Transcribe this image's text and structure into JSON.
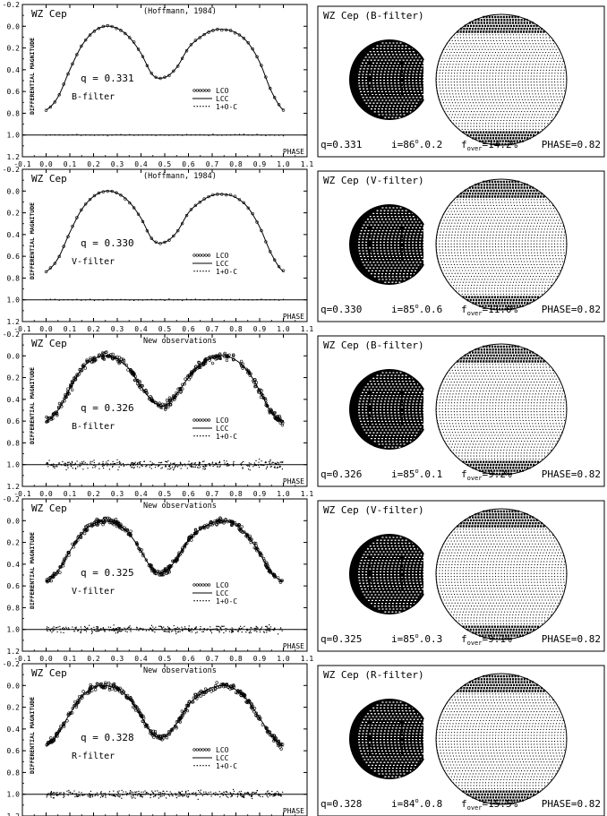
{
  "panels": [
    {
      "object": "WZ Cep",
      "source": "(Hoffmann, 1984)",
      "q_label": "q = 0.331",
      "filter_label": "B-filter",
      "model_title": "WZ Cep (B-filter)",
      "params": {
        "q": "q=0.331",
        "i_prefix": "i=86",
        "i_suffix": "0.2",
        "f_value": "=14.2%",
        "phase": "PHASE=0.82"
      },
      "scatter": 0.006
    },
    {
      "object": "WZ Cep",
      "source": "(Hoffmann, 1984)",
      "q_label": "q = 0.330",
      "filter_label": "V-filter",
      "model_title": "WZ Cep (V-filter)",
      "params": {
        "q": "q=0.330",
        "i_prefix": "i=85",
        "i_suffix": "0.6",
        "f_value": "=11.0%",
        "phase": "PHASE=0.82"
      },
      "scatter": 0.006
    },
    {
      "object": "WZ Cep",
      "source": "New observations",
      "q_label": "q = 0.326",
      "filter_label": "B-filter",
      "model_title": "WZ Cep (B-filter)",
      "params": {
        "q": "q=0.326",
        "i_prefix": "i=85",
        "i_suffix": "0.1",
        "f_value": "=9.2%",
        "phase": "PHASE=0.82"
      },
      "scatter": 0.035
    },
    {
      "object": "WZ Cep",
      "source": "New observations",
      "q_label": "q = 0.325",
      "filter_label": "V-filter",
      "model_title": "WZ Cep (V-filter)",
      "params": {
        "q": "q=0.325",
        "i_prefix": "i=85",
        "i_suffix": "0.3",
        "f_value": "=9.1%",
        "phase": "PHASE=0.82"
      },
      "scatter": 0.028
    },
    {
      "object": "WZ Cep",
      "source": "New observations",
      "q_label": "q = 0.328",
      "filter_label": "R-filter",
      "model_title": "WZ Cep (R-filter)",
      "params": {
        "q": "q=0.328",
        "i_prefix": "i=84",
        "i_suffix": "0.8",
        "f_value": "=15.5%",
        "phase": "PHASE=0.82"
      },
      "scatter": 0.03
    }
  ],
  "legend": {
    "lco": "LCO",
    "lcc": "LCC",
    "oc": "1+O-C"
  },
  "f_label": "f",
  "f_sub": "over",
  "chart_data": {
    "type": "scatter",
    "ylabel": "DIFFERENTIAL MAGNITUDE",
    "xlabel": "PHASE",
    "xlim": [
      -0.1,
      1.1
    ],
    "ylim": [
      1.2,
      -0.2
    ],
    "xticks": [
      "-0.1",
      "0.0",
      "0.1",
      "0.2",
      "0.3",
      "0.4",
      "0.5",
      "0.6",
      "0.7",
      "0.8",
      "0.9",
      "1.0",
      "1.1"
    ],
    "yticks": [
      "-0.2",
      "0.0",
      "0.2",
      "0.4",
      "0.6",
      "0.8",
      "1.0",
      "1.2"
    ],
    "curve_phase": [
      0.0,
      0.05,
      0.1,
      0.15,
      0.2,
      0.25,
      0.3,
      0.35,
      0.4,
      0.45,
      0.5,
      0.55,
      0.6,
      0.65,
      0.7,
      0.75,
      0.8,
      0.85,
      0.9,
      0.95,
      1.0
    ],
    "series": [
      {
        "name": "LCC",
        "panel": 1,
        "mag": [
          0.77,
          0.65,
          0.4,
          0.18,
          0.05,
          0.0,
          0.02,
          0.1,
          0.25,
          0.45,
          0.47,
          0.38,
          0.2,
          0.1,
          0.04,
          0.03,
          0.06,
          0.15,
          0.33,
          0.6,
          0.77
        ]
      },
      {
        "name": "LCC",
        "panel": 2,
        "mag": [
          0.74,
          0.62,
          0.38,
          0.17,
          0.05,
          0.0,
          0.02,
          0.1,
          0.25,
          0.45,
          0.47,
          0.38,
          0.2,
          0.1,
          0.04,
          0.03,
          0.06,
          0.15,
          0.33,
          0.58,
          0.74
        ]
      },
      {
        "name": "LCC",
        "panel": 3,
        "mag": [
          0.6,
          0.5,
          0.3,
          0.12,
          0.03,
          0.0,
          0.03,
          0.12,
          0.28,
          0.42,
          0.46,
          0.35,
          0.2,
          0.08,
          0.02,
          0.0,
          0.04,
          0.14,
          0.32,
          0.52,
          0.6
        ]
      },
      {
        "name": "LCC",
        "panel": 4,
        "mag": [
          0.56,
          0.46,
          0.28,
          0.12,
          0.03,
          0.0,
          0.03,
          0.12,
          0.28,
          0.45,
          0.47,
          0.35,
          0.18,
          0.08,
          0.02,
          0.0,
          0.04,
          0.14,
          0.3,
          0.48,
          0.56
        ]
      },
      {
        "name": "LCC",
        "panel": 5,
        "mag": [
          0.56,
          0.44,
          0.26,
          0.1,
          0.02,
          0.0,
          0.03,
          0.12,
          0.28,
          0.45,
          0.47,
          0.35,
          0.18,
          0.08,
          0.02,
          0.0,
          0.04,
          0.14,
          0.3,
          0.46,
          0.56
        ]
      }
    ],
    "oc_level": 1.0
  }
}
